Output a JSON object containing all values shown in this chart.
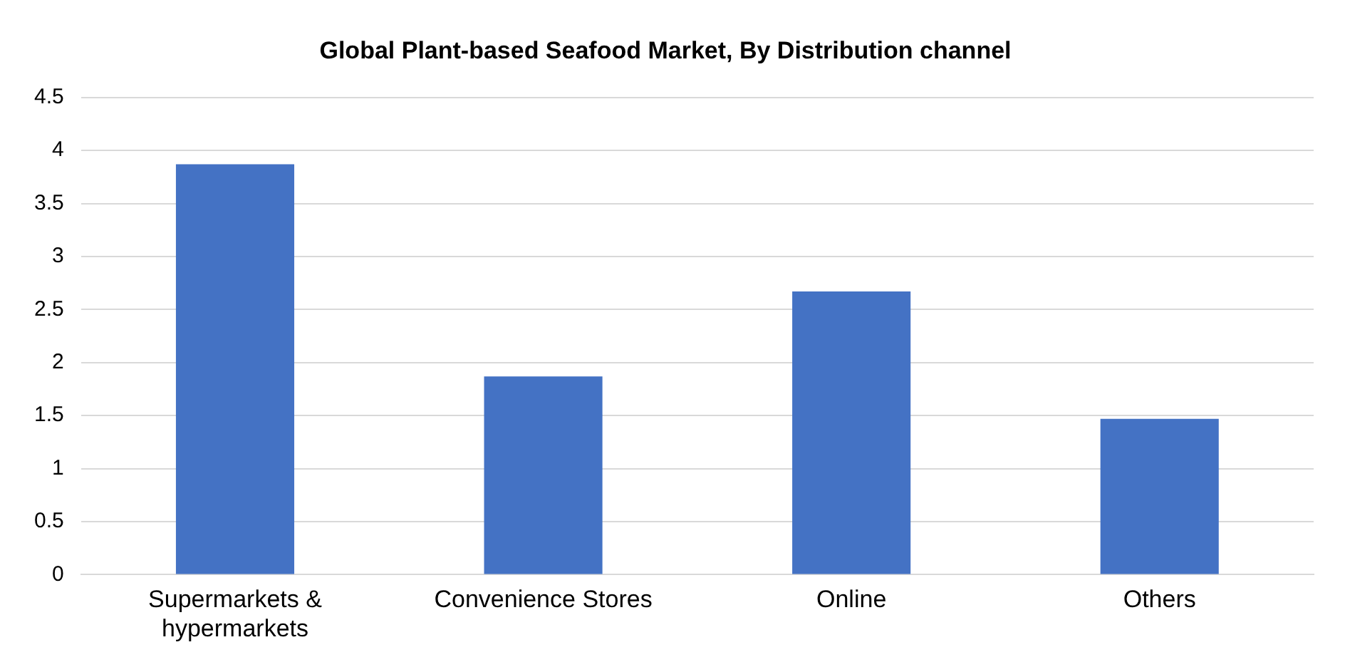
{
  "chart_data": {
    "type": "bar",
    "title": "Global Plant-based Seafood Market, By Distribution channel",
    "categories": [
      "Supermarkets & hypermarkets",
      "Convenience Stores",
      "Online",
      "Others"
    ],
    "values": [
      3.87,
      1.87,
      2.67,
      1.47
    ],
    "color": "#4472c4",
    "ylim": [
      0,
      4.5
    ],
    "yticks": [
      0,
      0.5,
      1,
      1.5,
      2,
      2.5,
      3,
      3.5,
      4,
      4.5
    ],
    "grid": "y",
    "legend": false
  }
}
